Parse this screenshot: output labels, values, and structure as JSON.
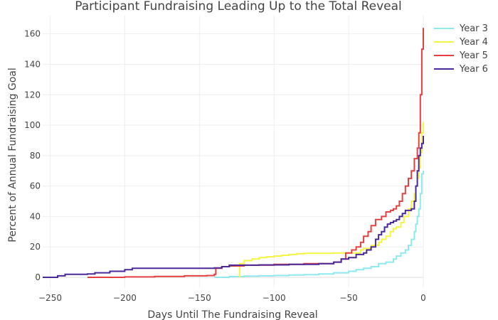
{
  "chart_data": {
    "type": "line",
    "title": "Participant Fundraising Leading Up to the Total Reveal",
    "xlabel": "Days Until The Fundraising Reveal",
    "ylabel": "Percent of Annual Fundraising Goal",
    "xlim": [
      -255,
      0
    ],
    "ylim": [
      -7,
      172
    ],
    "xticks": [
      -250,
      -200,
      -150,
      -100,
      -50,
      0
    ],
    "yticks": [
      0,
      20,
      40,
      60,
      80,
      100,
      120,
      140,
      160
    ],
    "xtick_labels": [
      "−250",
      "−200",
      "−150",
      "−100",
      "−50",
      "0"
    ],
    "ytick_labels": [
      "0",
      "20",
      "40",
      "60",
      "80",
      "100",
      "120",
      "140",
      "160"
    ],
    "grid": true,
    "legend_position": "top-right",
    "series": [
      {
        "name": "Year 3",
        "color": "#8fe8ee",
        "points": [
          [
            -140,
            0
          ],
          [
            -130,
            0.5
          ],
          [
            -120,
            0.8
          ],
          [
            -110,
            1
          ],
          [
            -100,
            1.2
          ],
          [
            -90,
            1.5
          ],
          [
            -80,
            1.8
          ],
          [
            -70,
            2.2
          ],
          [
            -60,
            3
          ],
          [
            -50,
            4
          ],
          [
            -45,
            5
          ],
          [
            -40,
            6
          ],
          [
            -35,
            7
          ],
          [
            -30,
            9
          ],
          [
            -25,
            10
          ],
          [
            -20,
            12
          ],
          [
            -18,
            14
          ],
          [
            -15,
            16
          ],
          [
            -12,
            18
          ],
          [
            -10,
            21
          ],
          [
            -8,
            25
          ],
          [
            -6,
            30
          ],
          [
            -5,
            35
          ],
          [
            -4,
            40
          ],
          [
            -3,
            45
          ],
          [
            -2,
            55
          ],
          [
            -1,
            68
          ],
          [
            0,
            70
          ]
        ]
      },
      {
        "name": "Year 4",
        "color": "#f5f545",
        "points": [
          [
            -123,
            0
          ],
          [
            -123,
            9
          ],
          [
            -120,
            11
          ],
          [
            -115,
            12
          ],
          [
            -110,
            13
          ],
          [
            -105,
            13.5
          ],
          [
            -100,
            14
          ],
          [
            -95,
            14.5
          ],
          [
            -90,
            15
          ],
          [
            -85,
            15.5
          ],
          [
            -80,
            15.8
          ],
          [
            -60,
            16
          ],
          [
            -45,
            16
          ],
          [
            -42,
            18
          ],
          [
            -40,
            19
          ],
          [
            -35,
            21
          ],
          [
            -30,
            23
          ],
          [
            -28,
            25
          ],
          [
            -25,
            27
          ],
          [
            -22,
            30
          ],
          [
            -20,
            32
          ],
          [
            -18,
            33
          ],
          [
            -15,
            36
          ],
          [
            -13,
            40
          ],
          [
            -10,
            45
          ],
          [
            -8,
            50
          ],
          [
            -6,
            55
          ],
          [
            -5,
            60
          ],
          [
            -4,
            65
          ],
          [
            -3,
            72
          ],
          [
            -2,
            82
          ],
          [
            -1,
            95
          ],
          [
            0,
            102
          ]
        ]
      },
      {
        "name": "Year 5",
        "color": "#e54040",
        "points": [
          [
            -225,
            0
          ],
          [
            -200,
            0.3
          ],
          [
            -180,
            0.6
          ],
          [
            -160,
            1
          ],
          [
            -145,
            1.2
          ],
          [
            -140,
            2
          ],
          [
            -139,
            6
          ],
          [
            -135,
            7
          ],
          [
            -130,
            7.5
          ],
          [
            -120,
            8
          ],
          [
            -100,
            8.5
          ],
          [
            -80,
            9
          ],
          [
            -60,
            10
          ],
          [
            -55,
            12
          ],
          [
            -52,
            16
          ],
          [
            -48,
            18
          ],
          [
            -45,
            20
          ],
          [
            -42,
            23
          ],
          [
            -40,
            27
          ],
          [
            -37,
            30
          ],
          [
            -35,
            34
          ],
          [
            -32,
            38
          ],
          [
            -28,
            40
          ],
          [
            -25,
            43
          ],
          [
            -22,
            44
          ],
          [
            -20,
            45
          ],
          [
            -18,
            47
          ],
          [
            -16,
            50
          ],
          [
            -14,
            55
          ],
          [
            -12,
            60
          ],
          [
            -10,
            65
          ],
          [
            -8,
            70
          ],
          [
            -6,
            78
          ],
          [
            -4,
            85
          ],
          [
            -3,
            95
          ],
          [
            -2,
            120
          ],
          [
            -1,
            150
          ],
          [
            0,
            164
          ]
        ]
      },
      {
        "name": "Year 6",
        "color": "#4a2a9a",
        "points": [
          [
            -255,
            0
          ],
          [
            -245,
            1
          ],
          [
            -240,
            2
          ],
          [
            -225,
            2.2
          ],
          [
            -220,
            3
          ],
          [
            -210,
            4
          ],
          [
            -200,
            5
          ],
          [
            -195,
            6
          ],
          [
            -185,
            6
          ],
          [
            -150,
            6
          ],
          [
            -140,
            6.2
          ],
          [
            -135,
            7
          ],
          [
            -130,
            8
          ],
          [
            -110,
            8.2
          ],
          [
            -90,
            8.5
          ],
          [
            -70,
            9
          ],
          [
            -60,
            10
          ],
          [
            -55,
            12
          ],
          [
            -50,
            13
          ],
          [
            -45,
            15
          ],
          [
            -40,
            16
          ],
          [
            -38,
            18
          ],
          [
            -35,
            20
          ],
          [
            -32,
            25
          ],
          [
            -30,
            28
          ],
          [
            -28,
            30
          ],
          [
            -26,
            33
          ],
          [
            -24,
            35
          ],
          [
            -22,
            36
          ],
          [
            -20,
            37
          ],
          [
            -18,
            38
          ],
          [
            -16,
            40
          ],
          [
            -14,
            42
          ],
          [
            -12,
            44
          ],
          [
            -10,
            44
          ],
          [
            -8,
            45
          ],
          [
            -6,
            50
          ],
          [
            -5,
            60
          ],
          [
            -4,
            70
          ],
          [
            -3,
            80
          ],
          [
            -2,
            85
          ],
          [
            -1,
            88
          ],
          [
            0,
            93
          ]
        ]
      }
    ]
  }
}
